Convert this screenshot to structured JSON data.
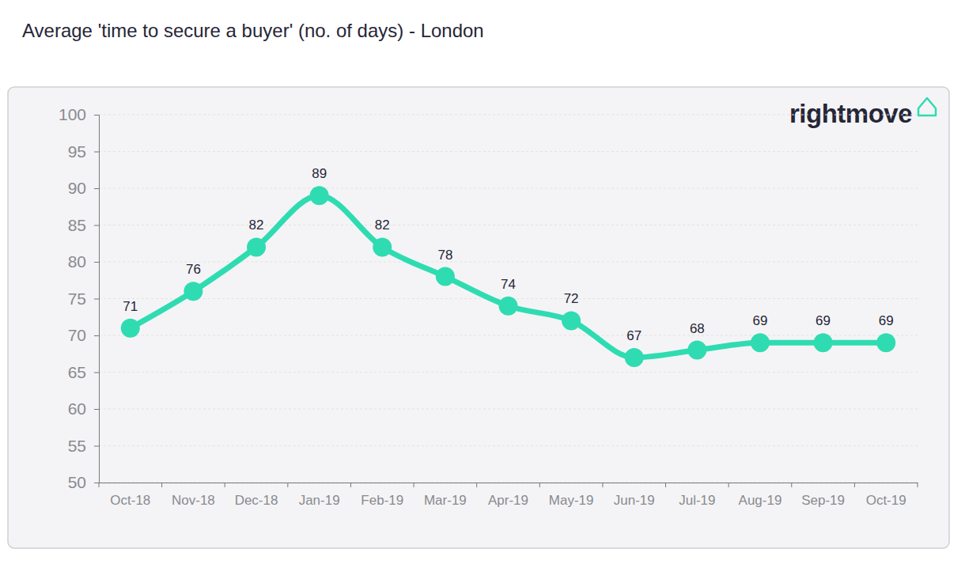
{
  "chart_data": {
    "type": "line",
    "title": "Average 'time to secure a buyer' (no. of days) - London",
    "annotations": [
      "rightmove"
    ],
    "categories": [
      "Oct-18",
      "Nov-18",
      "Dec-18",
      "Jan-19",
      "Feb-19",
      "Mar-19",
      "Apr-19",
      "May-19",
      "Jun-19",
      "Jul-19",
      "Aug-19",
      "Sep-19",
      "Oct-19"
    ],
    "values": [
      71,
      76,
      82,
      89,
      82,
      78,
      74,
      72,
      67,
      68,
      69,
      69,
      69
    ],
    "color": "#2fdcb1",
    "marker": "circle",
    "ylim": [
      50,
      100
    ],
    "yticks": [
      50,
      55,
      60,
      65,
      70,
      75,
      80,
      85,
      90,
      95,
      100
    ],
    "grid": true,
    "data_labels": true
  }
}
